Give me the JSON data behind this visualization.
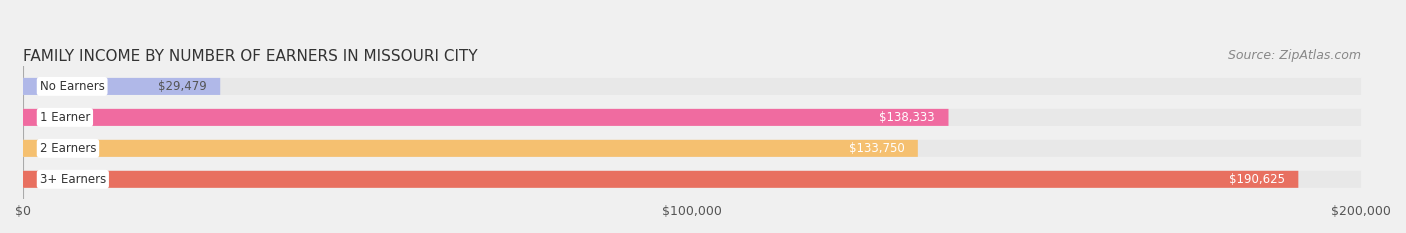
{
  "title": "FAMILY INCOME BY NUMBER OF EARNERS IN MISSOURI CITY",
  "source": "Source: ZipAtlas.com",
  "categories": [
    "No Earners",
    "1 Earner",
    "2 Earners",
    "3+ Earners"
  ],
  "values": [
    29479,
    138333,
    133750,
    190625
  ],
  "bar_colors": [
    "#b0b8e8",
    "#f06ba0",
    "#f5c070",
    "#e87060"
  ],
  "bar_label_colors": [
    "#555555",
    "#ffffff",
    "#ffffff",
    "#ffffff"
  ],
  "label_bg_color": "#ffffff",
  "background_color": "#f0f0f0",
  "bar_bg_color": "#e8e8e8",
  "xlim": [
    0,
    200000
  ],
  "xticks": [
    0,
    100000,
    200000
  ],
  "xtick_labels": [
    "$0",
    "$100,000",
    "$200,000"
  ],
  "title_fontsize": 11,
  "source_fontsize": 9,
  "bar_height": 0.55,
  "fig_width": 14.06,
  "fig_height": 2.33
}
